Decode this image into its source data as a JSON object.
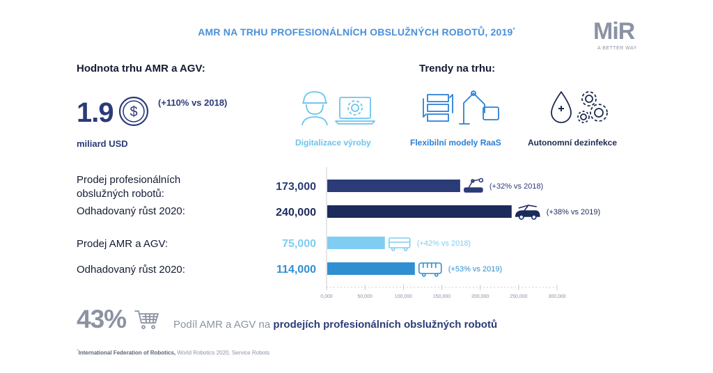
{
  "title": "AMR NA TRHU PROFESIONÁLNÍCH OBSLUŽNÝCH ROBOTŮ, 2019",
  "title_mark": "*",
  "logo": {
    "text_main": "MiR",
    "tagline": "A BETTER WAY"
  },
  "market": {
    "heading": "Hodnota trhu AMR a AGV:",
    "value": "1.9",
    "unit": "miliard USD",
    "growth": "(+110% vs 2018)",
    "currency_icon": "dollar-coin-icon"
  },
  "trends": {
    "heading": "Trendy na trhu:",
    "items": [
      {
        "label": "Digitalizace výroby",
        "icon": "worker-laptop-gear-icon",
        "color": "#6cc4ee"
      },
      {
        "label": "Flexibilní modely RaaS",
        "icon": "shelves-robot-arm-icon",
        "color": "#2a7fd4"
      },
      {
        "label": "Autonomní dezinfekce",
        "icon": "drop-gears-icon",
        "color": "#1d2a4d"
      }
    ]
  },
  "rows": {
    "professional_label_1": "Prodej profesionálních",
    "professional_label_2": "obslužných robotů:",
    "professional_growth_label": "Odhadovaný růst 2020:",
    "amr_label": "Prodej AMR a AGV:",
    "amr_growth_label": "Odhadovaný růst 2020:"
  },
  "chart_data": {
    "type": "bar",
    "orientation": "horizontal",
    "categories": [
      "Prodej profesionálních obslužných robotů",
      "Odhadovaný růst 2020",
      "Prodej AMR a AGV",
      "Odhadovaný růst 2020"
    ],
    "series": [
      {
        "name": "sales",
        "values": [
          173000,
          240000,
          75000,
          114000
        ]
      }
    ],
    "value_labels": [
      "173,000",
      "240,000",
      "75,000",
      "114,000"
    ],
    "annotations": [
      "(+32% vs 2018)",
      "(+38% vs 2019)",
      "(+42% vs 2018)",
      "(+53% vs 2019)"
    ],
    "bar_colors": [
      "#2b3b78",
      "#1d2a5c",
      "#7fcdf2",
      "#2f8fd0"
    ],
    "label_colors": [
      "#2b3b78",
      "#1d2a5c",
      "#7fcdf2",
      "#2f8fd0"
    ],
    "bar_icons": [
      "robot-arm-vehicle-icon",
      "crane-truck-icon",
      "cart-robot-icon",
      "bus-robot-icon"
    ],
    "xlim": [
      0,
      300000
    ],
    "x_ticks": [
      "0,000",
      "50,000",
      "100,000",
      "150,000",
      "200,000",
      "250,000",
      "300,000"
    ],
    "x_tick_values": [
      0,
      50000,
      100000,
      150000,
      200000,
      250000,
      300000
    ],
    "grid": false
  },
  "share": {
    "percent": "43%",
    "text_prefix": "Podíl AMR a AGV na ",
    "text_bold": "prodejích profesionálních obslužných robotů",
    "icon": "shopping-cart-icon"
  },
  "footnote": {
    "mark": "*",
    "bold": "International Federation of Robotics,",
    "rest": " World Robotics 2020, Service Robots"
  }
}
